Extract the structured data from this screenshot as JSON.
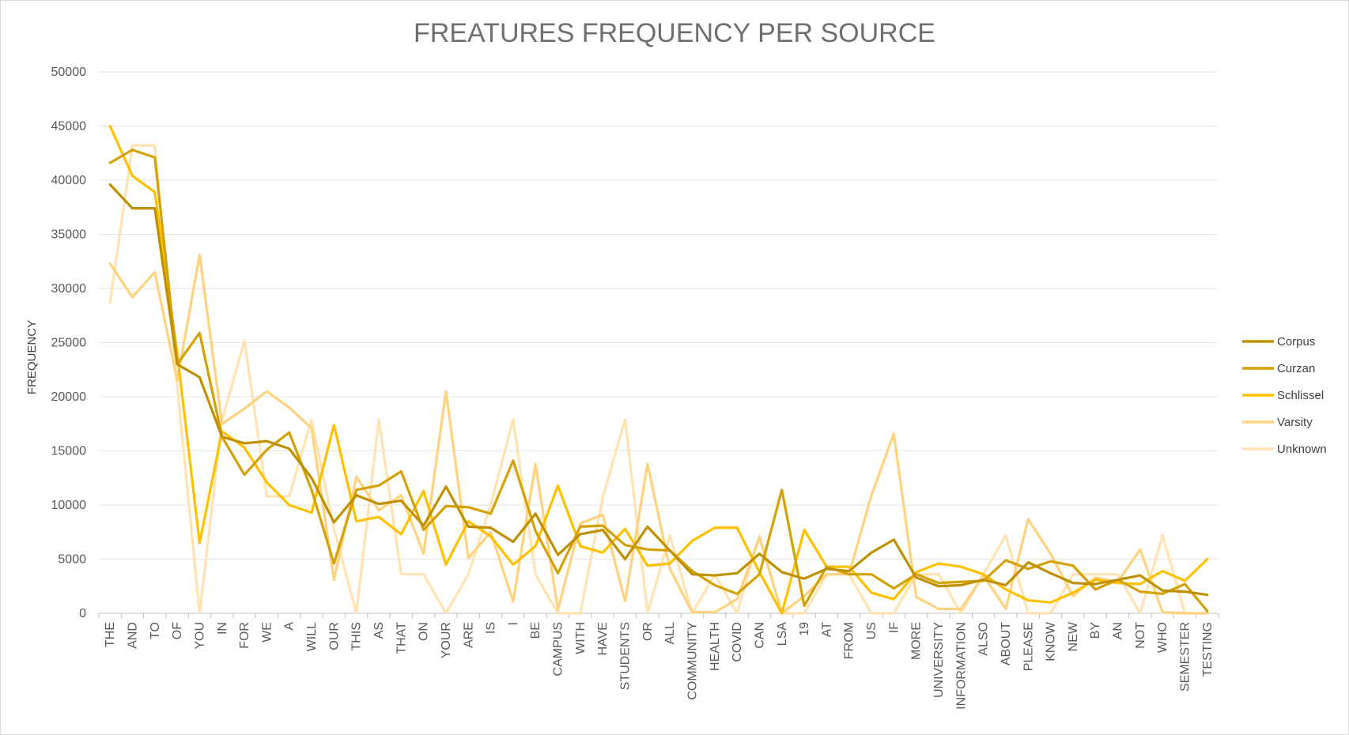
{
  "chart_data": {
    "type": "line",
    "title": "FREATURES FREQUENCY PER SOURCE",
    "xlabel": "",
    "ylabel": "FREQUENCY",
    "ylim": [
      0,
      50000
    ],
    "yticks": [
      0,
      5000,
      10000,
      15000,
      20000,
      25000,
      30000,
      35000,
      40000,
      45000,
      50000
    ],
    "grid": true,
    "legend_position": "right",
    "categories": [
      "THE",
      "AND",
      "TO",
      "OF",
      "YOU",
      "IN",
      "FOR",
      "WE",
      "A",
      "WILL",
      "OUR",
      "THIS",
      "AS",
      "THAT",
      "ON",
      "YOUR",
      "ARE",
      "IS",
      "I",
      "BE",
      "CAMPUS",
      "WITH",
      "HAVE",
      "STUDENTS",
      "OR",
      "ALL",
      "COMMUNITY",
      "HEALTH",
      "COVID",
      "CAN",
      "LSA",
      "19",
      "AT",
      "FROM",
      "US",
      "IF",
      "MORE",
      "UNIVERSITY",
      "INFORMATION",
      "ALSO",
      "ABOUT",
      "PLEASE",
      "KNOW",
      "NEW",
      "BY",
      "AN",
      "NOT",
      "WHO",
      "SEMESTER",
      "TESTING"
    ],
    "series": [
      {
        "name": "Corpus",
        "color": "#bf9000",
        "values": [
          39600,
          37400,
          37400,
          23000,
          21800,
          16300,
          15700,
          15900,
          15200,
          12500,
          8400,
          10900,
          10100,
          10400,
          8100,
          11700,
          8000,
          7900,
          6600,
          9200,
          5400,
          7300,
          7700,
          5000,
          8000,
          5800,
          3600,
          3500,
          3700,
          5500,
          3800,
          3200,
          4100,
          3900,
          5600,
          6800,
          3300,
          2500,
          2600,
          3100,
          2600,
          4700,
          3700,
          2800,
          2700,
          3100,
          3500,
          2100,
          2000,
          1700
        ]
      },
      {
        "name": "Curzan",
        "color": "#d4a106",
        "values": [
          41600,
          42800,
          42100,
          23000,
          25900,
          16300,
          12800,
          15100,
          16700,
          11400,
          4600,
          11400,
          11800,
          13100,
          7700,
          9900,
          9800,
          9200,
          14100,
          7600,
          3700,
          8000,
          8100,
          6300,
          5900,
          5800,
          3900,
          2600,
          1800,
          3600,
          11400,
          700,
          4300,
          3600,
          3600,
          2300,
          3600,
          2800,
          2900,
          3000,
          4900,
          4100,
          4800,
          4400,
          2200,
          3100,
          2000,
          1800,
          2700,
          200
        ]
      },
      {
        "name": "Schlissel",
        "color": "#ffc000",
        "values": [
          45000,
          40400,
          38900,
          24000,
          6500,
          16800,
          15300,
          12100,
          10000,
          9300,
          17400,
          8500,
          8900,
          7300,
          11300,
          4500,
          8500,
          7100,
          4500,
          6200,
          11800,
          6200,
          5600,
          7800,
          4400,
          4600,
          6700,
          7900,
          7900,
          3800,
          0,
          7700,
          4300,
          4300,
          1900,
          1300,
          3800,
          4600,
          4300,
          3600,
          2200,
          1200,
          1000,
          1900,
          3100,
          2800,
          2700,
          3900,
          3000,
          5000
        ]
      },
      {
        "name": "Varsity",
        "color": "#ffd27f",
        "values": [
          32300,
          29200,
          31500,
          21500,
          33100,
          17500,
          18900,
          20500,
          19000,
          17100,
          3100,
          12600,
          9500,
          10900,
          5500,
          20500,
          5100,
          7500,
          1100,
          13800,
          300,
          8300,
          9100,
          1100,
          13800,
          4100,
          100,
          100,
          1300,
          7000,
          0,
          1600,
          3600,
          3600,
          10900,
          16600,
          1500,
          400,
          400,
          3500,
          400,
          8700,
          5500,
          1600,
          3300,
          2900,
          5900,
          100,
          0,
          0
        ]
      },
      {
        "name": "Unknown",
        "color": "#ffe3b3",
        "values": [
          28700,
          43200,
          43200,
          21000,
          0,
          17800,
          25200,
          10800,
          10800,
          17900,
          7800,
          0,
          17900,
          3600,
          3600,
          0,
          3600,
          10000,
          17900,
          3600,
          0,
          0,
          10700,
          17900,
          0,
          7200,
          0,
          3600,
          0,
          7200,
          0,
          0,
          3600,
          3600,
          0,
          0,
          3600,
          3600,
          0,
          3600,
          7200,
          0,
          0,
          3600,
          3600,
          3600,
          0,
          7200,
          0,
          0
        ]
      }
    ]
  }
}
